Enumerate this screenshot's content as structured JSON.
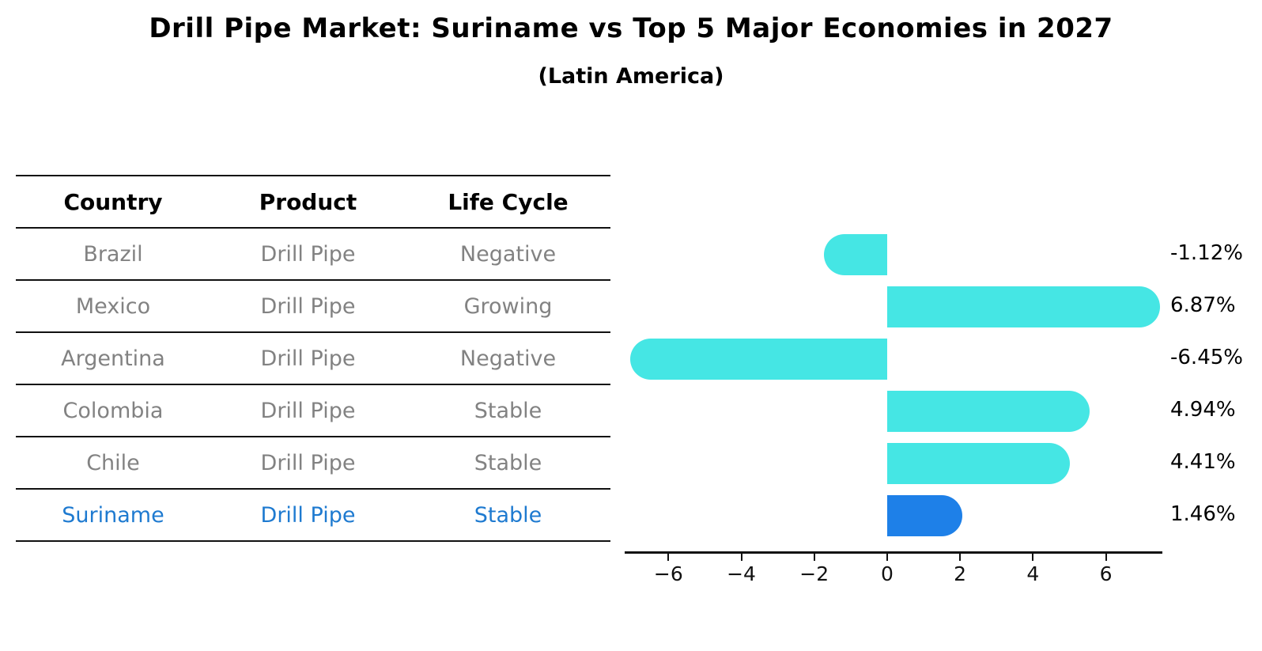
{
  "title": "Drill Pipe Market: Suriname vs Top 5 Major Economies in 2027",
  "subtitle": "(Latin America)",
  "table": {
    "headers": [
      "Country",
      "Product",
      "Life Cycle"
    ],
    "rows": [
      {
        "country": "Brazil",
        "product": "Drill Pipe",
        "life_cycle": "Negative",
        "highlight": false
      },
      {
        "country": "Mexico",
        "product": "Drill Pipe",
        "life_cycle": "Growing",
        "highlight": false
      },
      {
        "country": "Argentina",
        "product": "Drill Pipe",
        "life_cycle": "Negative",
        "highlight": false
      },
      {
        "country": "Colombia",
        "product": "Drill Pipe",
        "life_cycle": "Stable",
        "highlight": false
      },
      {
        "country": "Chile",
        "product": "Drill Pipe",
        "life_cycle": "Stable",
        "highlight": false
      },
      {
        "country": "Suriname",
        "product": "Drill Pipe",
        "life_cycle": "Stable",
        "highlight": true
      }
    ]
  },
  "chart_data": {
    "type": "bar",
    "orientation": "horizontal",
    "title": "Drill Pipe Market: Suriname vs Top 5 Major Economies in 2027",
    "subtitle": "(Latin America)",
    "categories": [
      "Brazil",
      "Mexico",
      "Argentina",
      "Colombia",
      "Chile",
      "Suriname"
    ],
    "values": [
      -1.12,
      6.87,
      -6.45,
      4.94,
      4.41,
      1.46
    ],
    "value_labels": [
      "-1.12%",
      "6.87%",
      "-6.45%",
      "4.94%",
      "4.41%",
      "1.46%"
    ],
    "units": "percent",
    "x_ticks": [
      -6,
      -4,
      -2,
      0,
      2,
      4,
      6
    ],
    "x_tick_labels": [
      "−6",
      "−4",
      "−2",
      "0",
      "2",
      "4",
      "6"
    ],
    "xlim": [
      -7.2,
      7.55
    ],
    "grid": false,
    "legend": "none",
    "bar_color": "#45e6e4",
    "highlight_color": "#1e80e8",
    "highlight_index": 5,
    "highlight_edge_style": "dotted"
  },
  "colors": {
    "background": "#ffffff",
    "table_line": "#111111",
    "row_text": "#828282",
    "header_text": "#000000",
    "highlight_text": "#1e7ad0",
    "axis": "#111111"
  }
}
